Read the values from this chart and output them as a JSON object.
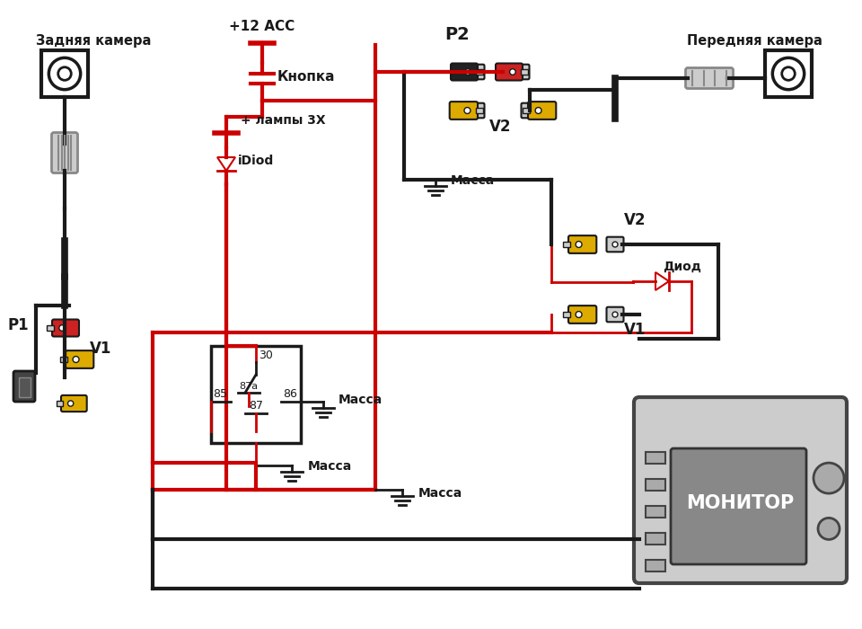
{
  "bg": "#ffffff",
  "red": "#cc0000",
  "black": "#1a1a1a",
  "yellow": "#ddaa00",
  "gray": "#888888",
  "lgray": "#cccccc",
  "dgray": "#444444",
  "labels": {
    "rear_cam": "Задняя камера",
    "front_cam": "Передняя камера",
    "plus12": "+12 ACC",
    "knopka": "Кнопка",
    "lampy": "+ лампы 3X",
    "idiod": "iDiod",
    "massa": "Масса",
    "diod": "Диод",
    "monitor": "МОНИТОР",
    "P1": "P1",
    "P2": "P2",
    "V1": "V1",
    "V2": "V2",
    "r30": "30",
    "r85": "85",
    "r86": "86",
    "r87a": "87a",
    "r87": "87"
  }
}
